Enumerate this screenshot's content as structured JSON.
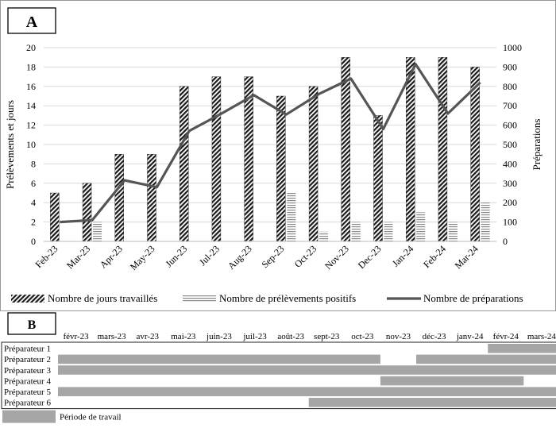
{
  "chart_data": [
    {
      "type": "bar",
      "panel_label": "A",
      "ylabel": "Prélèvements et jours",
      "y2label": "Préparations",
      "ylim": [
        0,
        20
      ],
      "y2lim": [
        0,
        1000
      ],
      "y_ticks": [
        "0",
        "2",
        "4",
        "6",
        "8",
        "10",
        "12",
        "14",
        "16",
        "18",
        "20"
      ],
      "y2_ticks": [
        "0",
        "100",
        "200",
        "300",
        "400",
        "500",
        "600",
        "700",
        "800",
        "900",
        "1000"
      ],
      "categories": [
        "Feb-23",
        "Mar-23",
        "Apr-23",
        "May-23",
        "Jun-23",
        "Jul-23",
        "Aug-23",
        "Sep-23",
        "Oct-23",
        "Nov-23",
        "Dec-23",
        "Jan-24",
        "Feb-24",
        "Mar-24"
      ],
      "series": [
        {
          "name": "Nombre de jours travaillés",
          "kind": "bar",
          "axis": "left",
          "pattern": "diagonal-hatch",
          "values": [
            5,
            6,
            9,
            9,
            16,
            17,
            17,
            15,
            16,
            19,
            13,
            19,
            19,
            18
          ]
        },
        {
          "name": "Nombre de prélèvements positifs",
          "kind": "bar",
          "axis": "left",
          "pattern": "horizontal-lines",
          "values": [
            0,
            2,
            0,
            0,
            0,
            0,
            0,
            5,
            1,
            2,
            2,
            3,
            2,
            4
          ]
        },
        {
          "name": "Nombre de préparations",
          "kind": "line",
          "axis": "right",
          "color": "#555555",
          "values": [
            100,
            110,
            315,
            280,
            570,
            660,
            755,
            655,
            760,
            840,
            580,
            915,
            660,
            820
          ]
        }
      ],
      "grid": true,
      "legend": "bottom"
    },
    {
      "type": "table",
      "panel_label": "B",
      "months": [
        "févr-23",
        "mars-23",
        "avr-23",
        "mai-23",
        "juin-23",
        "juil-23",
        "août-23",
        "sept-23",
        "oct-23",
        "nov-23",
        "déc-23",
        "janv-24",
        "févr-24",
        "mars-24"
      ],
      "rows": [
        {
          "name": "Préparateur 1",
          "working": [
            0,
            0,
            0,
            0,
            0,
            0,
            0,
            0,
            0,
            0,
            0,
            0,
            1,
            1
          ]
        },
        {
          "name": "Préparateur 2",
          "working": [
            1,
            1,
            1,
            1,
            1,
            1,
            1,
            1,
            1,
            0,
            1,
            1,
            1,
            1
          ]
        },
        {
          "name": "Préparateur 3",
          "working": [
            1,
            1,
            1,
            1,
            1,
            1,
            1,
            1,
            1,
            1,
            1,
            1,
            1,
            1
          ]
        },
        {
          "name": "Préparateur 4",
          "working": [
            0,
            0,
            0,
            0,
            0,
            0,
            0,
            0,
            0,
            1,
            1,
            1,
            1,
            0
          ]
        },
        {
          "name": "Préparateur 5",
          "working": [
            1,
            1,
            1,
            1,
            1,
            1,
            1,
            1,
            1,
            1,
            1,
            1,
            1,
            1
          ]
        },
        {
          "name": "Préparateur 6",
          "working": [
            0,
            0,
            0,
            0,
            0,
            0,
            0,
            1,
            1,
            1,
            1,
            1,
            1,
            1
          ]
        }
      ],
      "legend_label": "Période de travail",
      "fill_color": "#a6a6a6"
    }
  ]
}
